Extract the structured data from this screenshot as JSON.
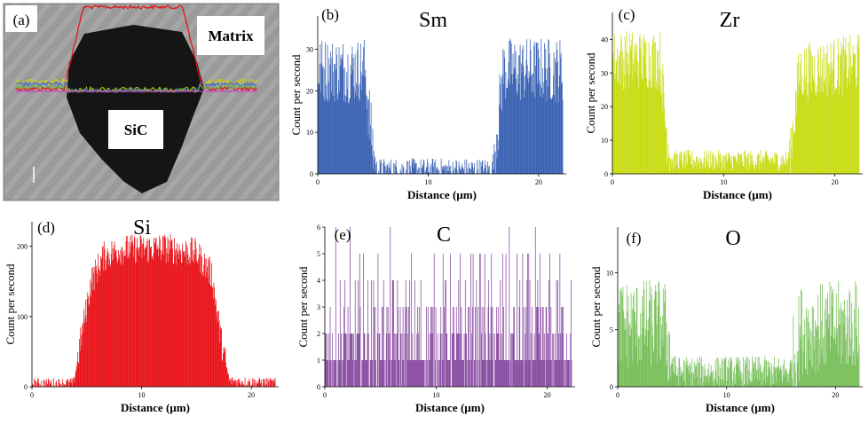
{
  "panel_a": {
    "label": "(a)",
    "matrix_label": "Matrix",
    "sic_label": "SiC"
  },
  "chart_data": [
    {
      "id": "b",
      "type": "bar",
      "panel_label": "(b)",
      "title": "Sm",
      "xlabel": "Distance (µm)",
      "ylabel": "Count per second",
      "xlim": [
        0,
        22.5
      ],
      "ylim": [
        0,
        38
      ],
      "xticks": [
        0,
        10,
        20
      ],
      "yticks": [
        0,
        10,
        20,
        30
      ],
      "color": "#3a62b3",
      "profile": [
        [
          0,
          25
        ],
        [
          4.3,
          25
        ],
        [
          4.8,
          10
        ],
        [
          5.3,
          1
        ],
        [
          15.8,
          1
        ],
        [
          16.3,
          12
        ],
        [
          16.8,
          25
        ],
        [
          22.2,
          25
        ]
      ],
      "noise": 8,
      "n_bins": 444
    },
    {
      "id": "c",
      "type": "bar",
      "panel_label": "(c)",
      "title": "Zr",
      "xlabel": "Distance (µm)",
      "ylabel": "Count per second",
      "xlim": [
        0,
        22.5
      ],
      "ylim": [
        0,
        48
      ],
      "xticks": [
        0,
        10,
        20
      ],
      "yticks": [
        0,
        10,
        20,
        30,
        40
      ],
      "color": "#c8dc14",
      "profile": [
        [
          0,
          34
        ],
        [
          4.3,
          34
        ],
        [
          4.8,
          14
        ],
        [
          5.3,
          4
        ],
        [
          15.8,
          4
        ],
        [
          16.3,
          15
        ],
        [
          16.8,
          30
        ],
        [
          22.2,
          33
        ]
      ],
      "noise": 9,
      "n_bins": 444
    },
    {
      "id": "d",
      "type": "bar",
      "panel_label": "(d)",
      "title": "Si",
      "xlabel": "Distance (µm)",
      "ylabel": "Count per second",
      "xlim": [
        0,
        22.5
      ],
      "ylim": [
        0,
        235
      ],
      "xticks": [
        0,
        10,
        20
      ],
      "yticks": [
        0,
        100,
        200
      ],
      "color": "#e8141a",
      "profile": [
        [
          0,
          5
        ],
        [
          3.8,
          5
        ],
        [
          4.6,
          80
        ],
        [
          5.4,
          150
        ],
        [
          6.5,
          185
        ],
        [
          8,
          195
        ],
        [
          12,
          198
        ],
        [
          15,
          190
        ],
        [
          16.4,
          160
        ],
        [
          17.3,
          60
        ],
        [
          18,
          8
        ],
        [
          22.2,
          5
        ]
      ],
      "noise": 22,
      "n_bins": 444
    },
    {
      "id": "e",
      "type": "bar",
      "panel_label": "(e)",
      "title": "C",
      "xlabel": "Distance (µm)",
      "ylabel": "Count per second",
      "xlim": [
        0,
        22.5
      ],
      "ylim": [
        0,
        6
      ],
      "xticks": [
        0,
        10,
        20
      ],
      "yticks": [
        0,
        1,
        2,
        3,
        4,
        5,
        6
      ],
      "color": "#8a4ea2",
      "profile": [
        [
          0,
          1.4
        ],
        [
          22.2,
          1.4
        ]
      ],
      "noise": 2,
      "n_bins": 444,
      "discrete": true
    },
    {
      "id": "f",
      "type": "bar",
      "panel_label": "(f)",
      "title": "O",
      "xlabel": "Distance (µm)",
      "ylabel": "Count per second",
      "xlim": [
        0,
        22.5
      ],
      "ylim": [
        0,
        14
      ],
      "xticks": [
        0,
        10,
        20
      ],
      "yticks": [
        0,
        5,
        10
      ],
      "color": "#78bf5a",
      "profile": [
        [
          0,
          5.5
        ],
        [
          4.3,
          5.5
        ],
        [
          4.8,
          3
        ],
        [
          5.3,
          1.3
        ],
        [
          15.8,
          1.3
        ],
        [
          16.3,
          3
        ],
        [
          16.8,
          5
        ],
        [
          22.2,
          5.5
        ]
      ],
      "noise": 4,
      "n_bins": 444
    }
  ]
}
